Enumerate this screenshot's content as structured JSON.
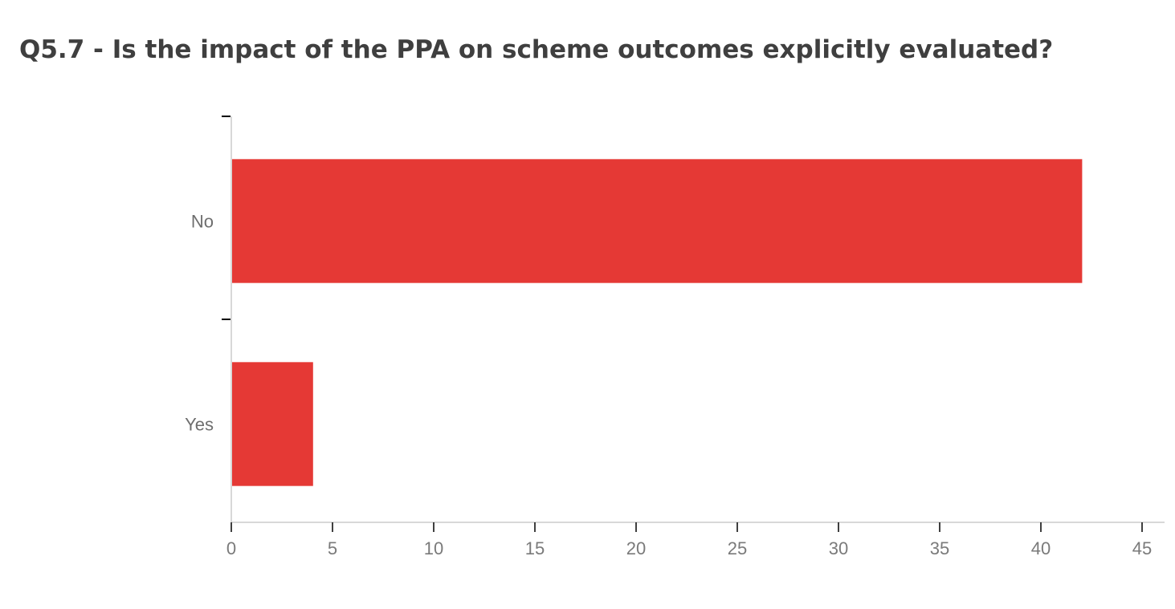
{
  "chart_data": {
    "type": "bar",
    "orientation": "horizontal",
    "title": "Q5.7 - Is the impact of the PPA on scheme outcomes explicitly evaluated?",
    "categories": [
      "No",
      "Yes"
    ],
    "values": [
      42,
      4
    ],
    "xlim": [
      0,
      45
    ],
    "xticks": [
      0,
      5,
      10,
      15,
      20,
      25,
      30,
      35,
      40,
      45
    ],
    "grid": false,
    "legend": "none",
    "bar_color": "#e53935",
    "axis_color": "#cccccc",
    "tick_mark_color": "#000000"
  }
}
